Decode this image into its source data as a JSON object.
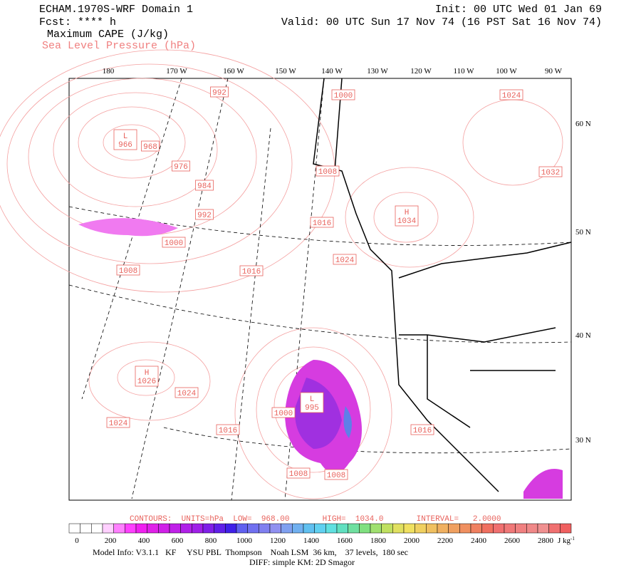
{
  "header": {
    "title": "ECHAM.1970S-WRF Domain 1",
    "forecast": "Fcst: **** h",
    "field": "Maximum CAPE (J/kg)",
    "contour_field": "Sea Level Pressure (hPa)",
    "init": "Init: 00 UTC Wed 01 Jan 69",
    "valid": "Valid: 00 UTC Sun 17 Nov 74 (16 PST Sat 16 Nov 74)"
  },
  "map": {
    "longitude_labels": [
      "180",
      "170 W",
      "160 W",
      "150 W",
      "140 W",
      "130 W",
      "120 W",
      "110 W",
      "100 W",
      "90 W"
    ],
    "latitude_labels": [
      "60 N",
      "50 N",
      "40 N",
      "30 N"
    ],
    "contour_labels": [
      "992",
      "1000",
      "1024",
      "968",
      "976",
      "984",
      "1008",
      "1032",
      "992",
      "1016",
      "1000",
      "1024",
      "1008",
      "1016",
      "1024",
      "1000",
      "1024",
      "1016",
      "1016",
      "1008",
      "1008"
    ],
    "pressure_centers": [
      {
        "type": "L",
        "value": "966"
      },
      {
        "type": "H",
        "value": "1034"
      },
      {
        "type": "H",
        "value": "1026"
      },
      {
        "type": "L",
        "value": "995"
      }
    ]
  },
  "footer": {
    "contours": "CONTOURS:  UNITS=hPa  LOW=  968.00       HIGH=  1034.0       INTERVAL=   2.0000",
    "colorbar_labels": [
      "0",
      "200",
      "400",
      "600",
      "800",
      "1000",
      "1200",
      "1400",
      "1600",
      "1800",
      "2000",
      "2200",
      "2400",
      "2600",
      "2800"
    ],
    "colorbar_unit": "J kg",
    "colorbar_unit_exponent": "-1",
    "model_info": "Model Info: V3.1.1   KF     YSU PBL  Thompson    Noah LSM  36 km,    37 levels,  180 sec",
    "diff": "DIFF: simple KM: 2D Smagor"
  }
}
